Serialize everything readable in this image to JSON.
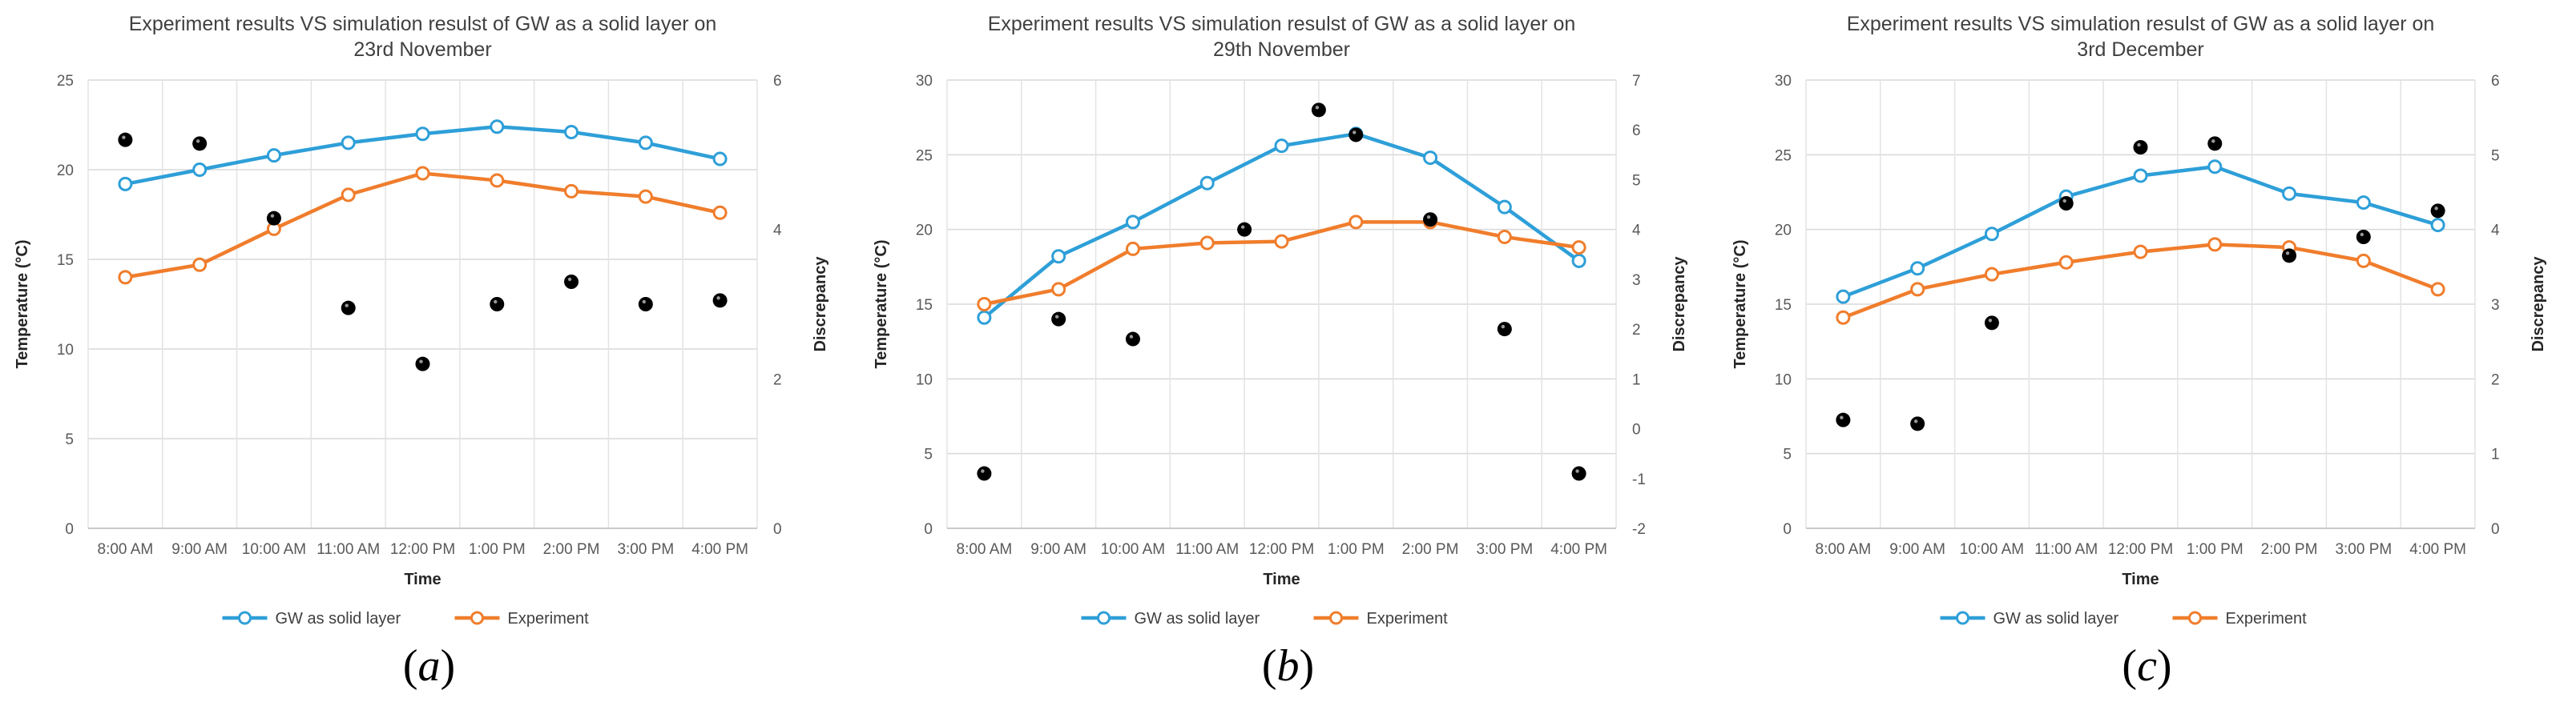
{
  "chart_data": [
    {
      "type": "line",
      "title": "Experiment results VS simulation resulst of GW as a solid layer on 23rd November",
      "title_lines": [
        "Experiment results VS simulation  resulst of  GW as a solid layer on",
        "23rd November"
      ],
      "categories": [
        "8:00 AM",
        "9:00 AM",
        "10:00 AM",
        "11:00 AM",
        "12:00 PM",
        "1:00 PM",
        "2:00 PM",
        "3:00 PM",
        "4:00 PM"
      ],
      "x_positions": [
        0,
        1,
        2,
        3,
        4,
        5,
        6,
        7,
        8
      ],
      "series": [
        {
          "name": "GW as solid layer",
          "color": "#2e9fd8",
          "axis": "left",
          "x": [
            0,
            1,
            2,
            3,
            4,
            5,
            6,
            7,
            8
          ],
          "values": [
            19.2,
            20.0,
            20.8,
            21.5,
            22.0,
            22.4,
            22.1,
            21.5,
            20.6
          ]
        },
        {
          "name": "Experiment",
          "color": "#f07d2c",
          "axis": "left",
          "x": [
            0,
            1,
            2,
            3,
            4,
            5,
            6,
            7,
            8
          ],
          "values": [
            14.0,
            14.7,
            16.7,
            18.6,
            19.8,
            19.4,
            18.8,
            18.5,
            17.6
          ]
        },
        {
          "name": "Discrepancy",
          "color": "#000000",
          "axis": "right",
          "kind": "scatter",
          "x": [
            0,
            1,
            2,
            3,
            4,
            5,
            6,
            7,
            8
          ],
          "values": [
            5.2,
            5.15,
            4.15,
            2.95,
            2.2,
            3.0,
            3.3,
            3.0,
            3.05
          ]
        }
      ],
      "xlabel": "Time",
      "ylabel": "Temperature (°C)",
      "y2label": "Discrepancy",
      "ylim": [
        0,
        25
      ],
      "yticks": [
        "0",
        "5",
        "10",
        "15",
        "20",
        "25"
      ],
      "y2lim": [
        0,
        6
      ],
      "y2ticks": [
        "0",
        "2",
        "4",
        "6"
      ],
      "y2tick_values": [
        0,
        2,
        4,
        6
      ],
      "legend": [
        "GW as solid layer",
        "Experiment"
      ],
      "panel_label": "(a)",
      "panel_letter": "a"
    },
    {
      "type": "line",
      "title": "Experiment results VS simulation resulst of GW as a solid layer on 29th November",
      "title_lines": [
        "Experiment results VS simulation  resulst of  GW as a solid layer on",
        "29th November"
      ],
      "categories": [
        "8:00 AM",
        "9:00 AM",
        "10:00 AM",
        "11:00 AM",
        "12:00 PM",
        "1:00 PM",
        "2:00 PM",
        "3:00 PM",
        "4:00 PM"
      ],
      "x_positions": [
        0,
        1,
        2,
        3,
        4,
        5,
        6,
        7,
        8
      ],
      "series": [
        {
          "name": "GW as solid layer",
          "color": "#2e9fd8",
          "axis": "left",
          "x": [
            0,
            1,
            2,
            3,
            4,
            5,
            6,
            7,
            8
          ],
          "values": [
            14.1,
            18.2,
            20.5,
            23.1,
            25.6,
            26.4,
            24.8,
            21.5,
            17.9
          ]
        },
        {
          "name": "Experiment",
          "color": "#f07d2c",
          "axis": "left",
          "x": [
            0,
            1,
            2,
            3,
            4,
            5,
            6,
            7,
            8
          ],
          "values": [
            15.0,
            16.0,
            18.7,
            19.1,
            19.2,
            20.5,
            20.5,
            19.5,
            18.8
          ]
        },
        {
          "name": "Discrepancy",
          "color": "#000000",
          "axis": "right",
          "kind": "scatter",
          "x": [
            0,
            1,
            2.0,
            3.5,
            4.5,
            5.0,
            6.0,
            7.0,
            8.0
          ],
          "values": [
            -0.9,
            2.2,
            1.8,
            4.0,
            6.4,
            5.9,
            4.2,
            2.0,
            -0.9
          ]
        }
      ],
      "xlabel": "Time",
      "ylabel": "Temperature (°C)",
      "y2label": "Discrepancy",
      "ylim": [
        0,
        30
      ],
      "yticks": [
        "0",
        "5",
        "10",
        "15",
        "20",
        "25",
        "30"
      ],
      "y2lim": [
        -2,
        7
      ],
      "y2ticks": [
        "-2",
        "-1",
        "0",
        "1",
        "2",
        "3",
        "4",
        "5",
        "6",
        "7"
      ],
      "y2tick_values": [
        -2,
        -1,
        0,
        1,
        2,
        3,
        4,
        5,
        6,
        7
      ],
      "legend": [
        "GW as solid layer",
        "Experiment"
      ],
      "panel_label": "(b)",
      "panel_letter": "b"
    },
    {
      "type": "line",
      "title": "Experiment results VS simulation resulst of GW as a solid layer on 3rd December",
      "title_lines": [
        "Experiment results VS simulation  resulst of  GW as a solid layer on",
        "3rd December"
      ],
      "categories": [
        "8:00 AM",
        "9:00 AM",
        "10:00 AM",
        "11:00 AM",
        "12:00 PM",
        "1:00 PM",
        "2:00 PM",
        "3:00 PM",
        "4:00 PM"
      ],
      "x_positions": [
        0,
        1,
        2,
        3,
        4,
        5,
        6,
        7,
        8
      ],
      "series": [
        {
          "name": "GW as solid layer",
          "color": "#2e9fd8",
          "axis": "left",
          "x": [
            0,
            1,
            2,
            3,
            4,
            5,
            6,
            7,
            8
          ],
          "values": [
            15.5,
            17.4,
            19.7,
            22.2,
            23.6,
            24.2,
            22.4,
            21.8,
            20.3
          ]
        },
        {
          "name": "Experiment",
          "color": "#f07d2c",
          "axis": "left",
          "x": [
            0,
            1,
            2,
            3,
            4,
            5,
            6,
            7,
            8
          ],
          "values": [
            14.1,
            16.0,
            17.0,
            17.8,
            18.5,
            19.0,
            18.8,
            17.9,
            16.0
          ]
        },
        {
          "name": "Discrepancy",
          "color": "#000000",
          "axis": "right",
          "kind": "scatter",
          "x": [
            0,
            1,
            2.0,
            3.0,
            4.0,
            5.0,
            6.0,
            7.0,
            8.0
          ],
          "values": [
            1.45,
            1.4,
            2.75,
            4.35,
            5.1,
            5.15,
            3.65,
            3.9,
            4.25
          ]
        }
      ],
      "xlabel": "Time",
      "ylabel": "Temperature (°C)",
      "y2label": "Discrepancy",
      "ylim": [
        0,
        30
      ],
      "yticks": [
        "0",
        "5",
        "10",
        "15",
        "20",
        "25",
        "30"
      ],
      "y2lim": [
        0,
        6
      ],
      "y2ticks": [
        "0",
        "1",
        "2",
        "3",
        "4",
        "5",
        "6"
      ],
      "y2tick_values": [
        0,
        1,
        2,
        3,
        4,
        5,
        6
      ],
      "legend": [
        "GW as solid layer",
        "Experiment"
      ],
      "panel_label": "(c)",
      "panel_letter": "c"
    }
  ]
}
